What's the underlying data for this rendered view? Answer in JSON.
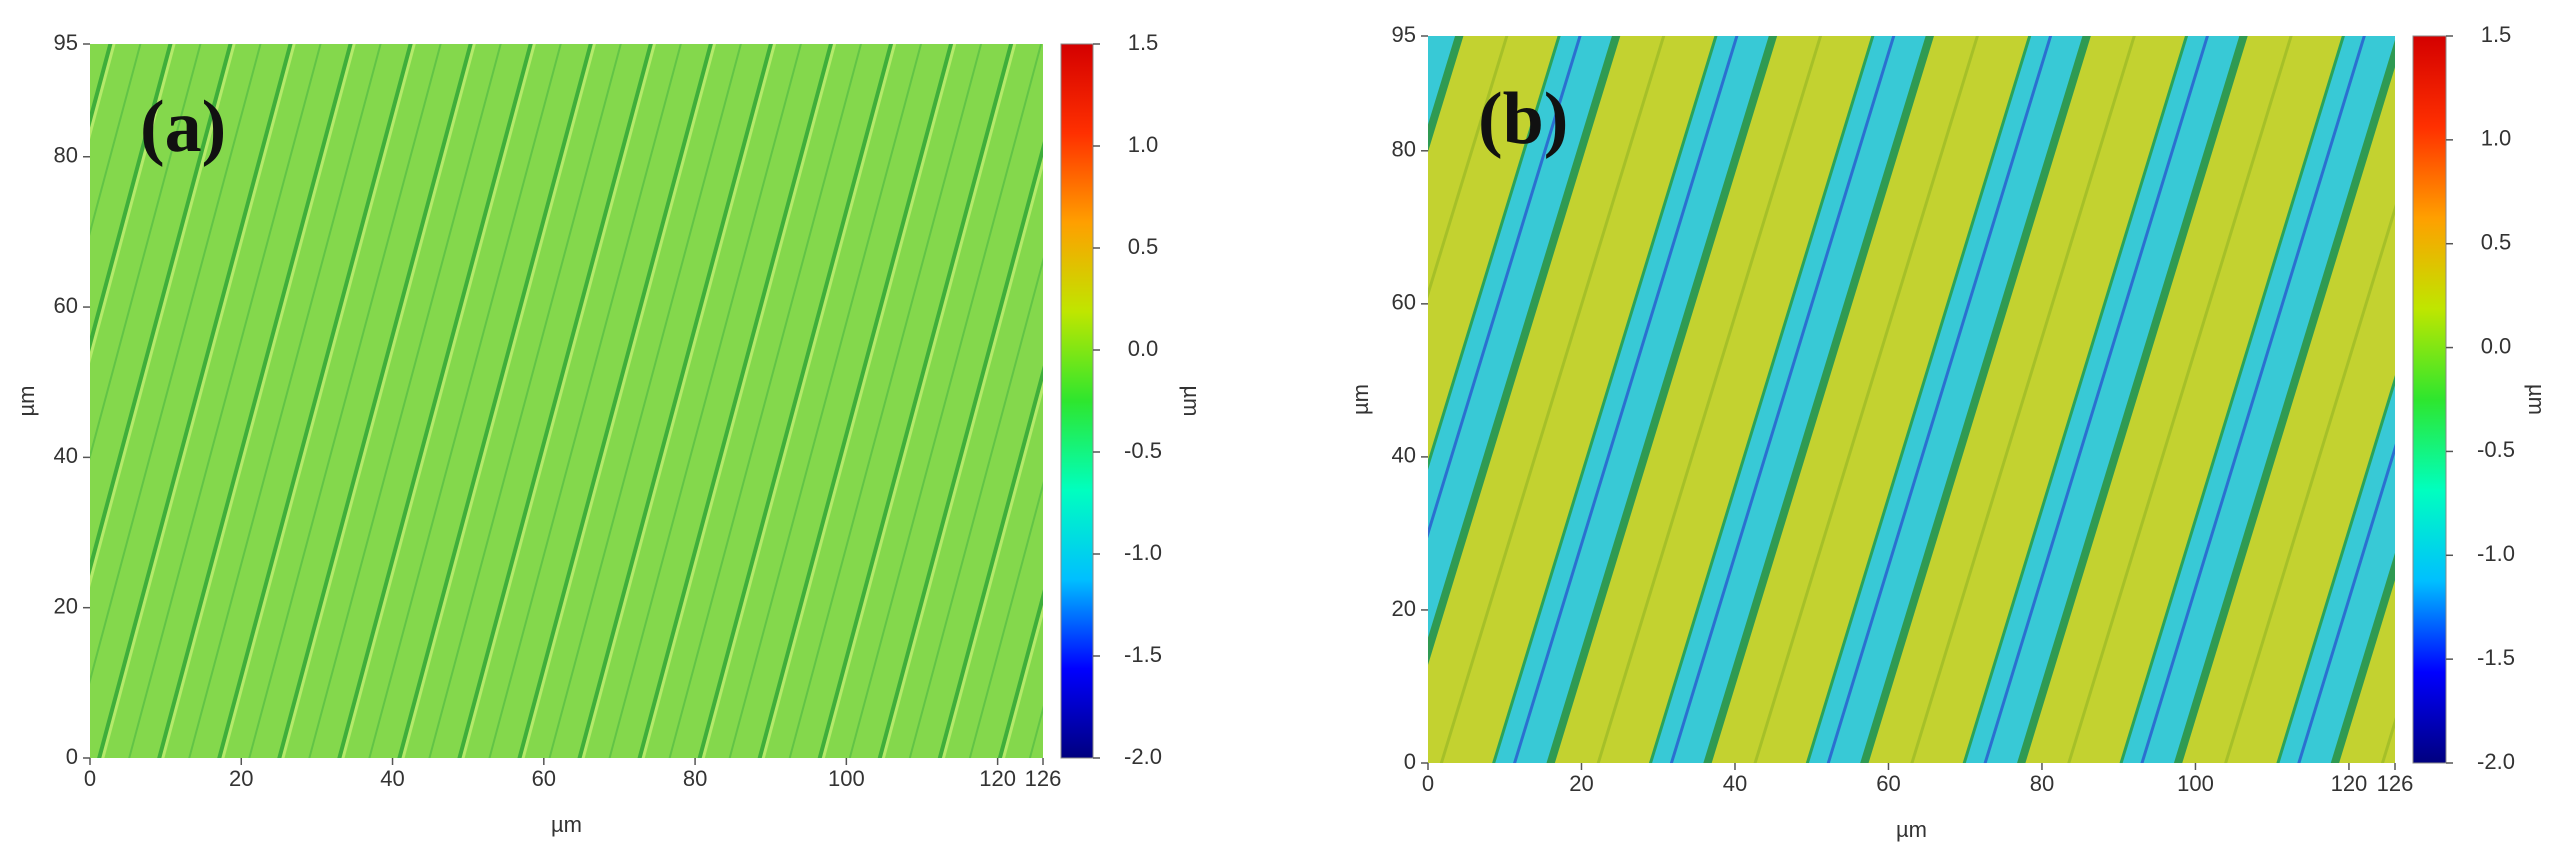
{
  "chart_data": [
    {
      "type": "heatmap",
      "panel_label": "(a)",
      "xlabel": "µm",
      "ylabel": "µm",
      "colorbar_label": "µm",
      "xlim": [
        0,
        126
      ],
      "xticks": [
        0,
        20,
        40,
        60,
        80,
        100,
        120,
        126
      ],
      "ylim": [
        0,
        95
      ],
      "yticks": [
        0,
        20,
        40,
        60,
        80,
        95
      ],
      "clim": [
        -2,
        1.5
      ],
      "cticks": [
        1.5,
        {
          "value": 1,
          "label": "1.0"
        },
        0.5,
        {
          "value": 0,
          "label": "0.0"
        },
        -0.5,
        {
          "value": -1,
          "label": "-1.0"
        },
        -1.5,
        {
          "value": -2,
          "label": "-2.0"
        }
      ],
      "colormap": [
        "#00007f",
        "#0000ff",
        "#00bfff",
        "#00ffbf",
        "#2ee62e",
        "#bfe600",
        "#ff9f00",
        "#ff3000",
        "#d40000"
      ]
    },
    {
      "type": "heatmap",
      "panel_label": "(b)",
      "xlabel": "µm",
      "ylabel": "µm",
      "colorbar_label": "µm",
      "xlim": [
        0,
        126
      ],
      "xticks": [
        0,
        20,
        40,
        60,
        80,
        100,
        120,
        126
      ],
      "ylim": [
        0,
        95
      ],
      "yticks": [
        0,
        20,
        40,
        60,
        80,
        95
      ],
      "clim": [
        -2,
        1.5
      ],
      "cticks": [
        1.5,
        {
          "value": 1,
          "label": "1.0"
        },
        0.5,
        {
          "value": 0,
          "label": "0.0"
        },
        -0.5,
        {
          "value": -1,
          "label": "-1.0"
        },
        -1.5,
        {
          "value": -2,
          "label": "-2.0"
        }
      ],
      "colormap": [
        "#00007f",
        "#0000ff",
        "#00bfff",
        "#00ffbf",
        "#2ee62e",
        "#bfe600",
        "#ff9f00",
        "#ff3000",
        "#d40000"
      ]
    }
  ]
}
